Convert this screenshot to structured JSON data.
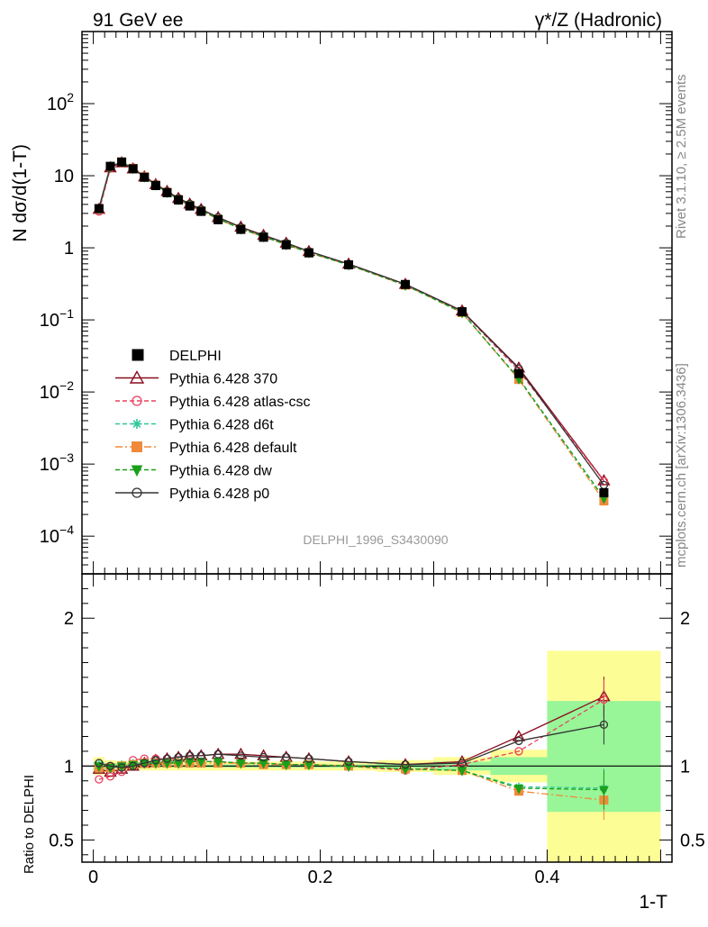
{
  "header": {
    "left": "91 GeV ee",
    "right": "γ*/Z (Hadronic)"
  },
  "side_labels": {
    "rivet": "Rivet 3.1.10, ≥ 2.5M events",
    "mcplots": "mcplots.cern.ch [arXiv:1306.3436]"
  },
  "watermark": "DELPHI_1996_S3430090",
  "chart_data": {
    "type": "line",
    "xlabel": "1-T",
    "ylabel_top": "N dσ/d(1-T)",
    "ylabel_ratio": "Ratio to DELPHI",
    "xlim": [
      -0.01,
      0.51
    ],
    "ylim_top": [
      3e-05,
      1000
    ],
    "ylim_ratio": [
      0.35,
      2.3
    ],
    "yscale_top": "log",
    "x_ticks": [
      {
        "v": 0,
        "label": "0"
      },
      {
        "v": 0.2,
        "label": "0.2"
      },
      {
        "v": 0.4,
        "label": "0.4"
      }
    ],
    "y_ticks_top": [
      {
        "v": 100,
        "mant": "10",
        "exp": "2"
      },
      {
        "v": 10,
        "mant": "10",
        "exp": ""
      },
      {
        "v": 1,
        "mant": "1",
        "exp": ""
      },
      {
        "v": 0.1,
        "mant": "10",
        "exp": "−1"
      },
      {
        "v": 0.01,
        "mant": "10",
        "exp": "−2"
      },
      {
        "v": 0.001,
        "mant": "10",
        "exp": "−3"
      },
      {
        "v": 0.0001,
        "mant": "10",
        "exp": "−4"
      }
    ],
    "y_ticks_ratio": [
      {
        "v": 0.5,
        "label": "0.5"
      },
      {
        "v": 1,
        "label": "1"
      },
      {
        "v": 2,
        "label": "2"
      }
    ],
    "legend_position": "lower-left",
    "x": [
      0.005,
      0.015,
      0.025,
      0.035,
      0.045,
      0.055,
      0.065,
      0.075,
      0.085,
      0.095,
      0.11,
      0.13,
      0.15,
      0.17,
      0.19,
      0.225,
      0.275,
      0.325,
      0.375,
      0.45
    ],
    "data": {
      "name": "DELPHI",
      "values": [
        3.5,
        13.5,
        15.5,
        12.5,
        9.5,
        7.3,
        5.8,
        4.6,
        3.8,
        3.2,
        2.45,
        1.8,
        1.4,
        1.1,
        0.85,
        0.58,
        0.31,
        0.13,
        0.018,
        0.0004
      ]
    },
    "mc_band": {
      "x_edges": [
        0.0,
        0.01,
        0.02,
        0.03,
        0.04,
        0.05,
        0.06,
        0.07,
        0.08,
        0.09,
        0.1,
        0.12,
        0.14,
        0.16,
        0.18,
        0.2,
        0.25,
        0.3,
        0.35,
        0.4,
        0.5
      ],
      "stat_hi": [
        1.03,
        1.02,
        1.015,
        1.012,
        1.01,
        1.01,
        1.01,
        1.01,
        1.01,
        1.01,
        1.01,
        1.01,
        1.01,
        1.01,
        1.01,
        1.01,
        1.015,
        1.03,
        1.06,
        1.44
      ],
      "stat_lo": [
        0.97,
        0.98,
        0.985,
        0.988,
        0.99,
        0.99,
        0.99,
        0.99,
        0.99,
        0.99,
        0.99,
        0.99,
        0.99,
        0.99,
        0.99,
        0.99,
        0.985,
        0.97,
        0.94,
        0.69
      ],
      "tot_hi": [
        1.06,
        1.04,
        1.035,
        1.03,
        1.03,
        1.03,
        1.03,
        1.03,
        1.03,
        1.03,
        1.03,
        1.03,
        1.03,
        1.03,
        1.03,
        1.03,
        1.04,
        1.06,
        1.11,
        1.78
      ],
      "tot_lo": [
        0.94,
        0.96,
        0.965,
        0.97,
        0.97,
        0.97,
        0.97,
        0.97,
        0.97,
        0.97,
        0.97,
        0.97,
        0.97,
        0.97,
        0.97,
        0.97,
        0.96,
        0.94,
        0.89,
        0.35
      ]
    },
    "series": [
      {
        "name": "Pythia 6.428 370",
        "color": "#8b0d1f",
        "dash": "",
        "marker": "triangle-open",
        "ratio": [
          0.98,
          0.96,
          0.98,
          1.0,
          1.02,
          1.04,
          1.05,
          1.06,
          1.07,
          1.07,
          1.08,
          1.08,
          1.07,
          1.06,
          1.05,
          1.03,
          1.01,
          1.03,
          1.2,
          1.47
        ]
      },
      {
        "name": "Pythia 6.428 atlas-csc",
        "color": "#e8405e",
        "dash": "5,3",
        "marker": "circle-open",
        "ratio": [
          0.91,
          0.93,
          0.96,
          1.04,
          1.05,
          1.05,
          1.05,
          1.04,
          1.04,
          1.03,
          1.03,
          1.02,
          1.02,
          1.01,
          1.01,
          1.0,
          0.97,
          1.01,
          1.1,
          1.45
        ]
      },
      {
        "name": "Pythia 6.428 d6t",
        "color": "#2ec69a",
        "dash": "5,3",
        "marker": "star",
        "ratio": [
          1.01,
          1.0,
          1.01,
          1.02,
          1.02,
          1.03,
          1.03,
          1.03,
          1.03,
          1.03,
          1.03,
          1.02,
          1.02,
          1.01,
          1.01,
          1.0,
          0.98,
          0.97,
          0.86,
          0.85
        ]
      },
      {
        "name": "Pythia 6.428 default",
        "color": "#f08a3a",
        "dash": "8,3,2,3",
        "marker": "square-filled",
        "ratio": [
          0.99,
          0.99,
          1.0,
          1.01,
          1.02,
          1.02,
          1.02,
          1.02,
          1.02,
          1.02,
          1.02,
          1.02,
          1.01,
          1.01,
          1.01,
          1.0,
          0.98,
          0.97,
          0.83,
          0.77
        ]
      },
      {
        "name": "Pythia 6.428 dw",
        "color": "#1aa01a",
        "dash": "5,3",
        "marker": "triangle-down-filled",
        "ratio": [
          1.0,
          0.99,
          1.0,
          1.01,
          1.02,
          1.02,
          1.02,
          1.02,
          1.03,
          1.03,
          1.03,
          1.02,
          1.02,
          1.01,
          1.01,
          1.0,
          0.98,
          0.97,
          0.85,
          0.84
        ]
      },
      {
        "name": "Pythia 6.428 p0",
        "color": "#333333",
        "dash": "",
        "marker": "circle-open",
        "ratio": [
          1.02,
          1.0,
          0.99,
          1.0,
          1.02,
          1.04,
          1.05,
          1.06,
          1.07,
          1.07,
          1.08,
          1.07,
          1.06,
          1.06,
          1.05,
          1.03,
          1.01,
          1.02,
          1.17,
          1.28
        ]
      }
    ]
  }
}
